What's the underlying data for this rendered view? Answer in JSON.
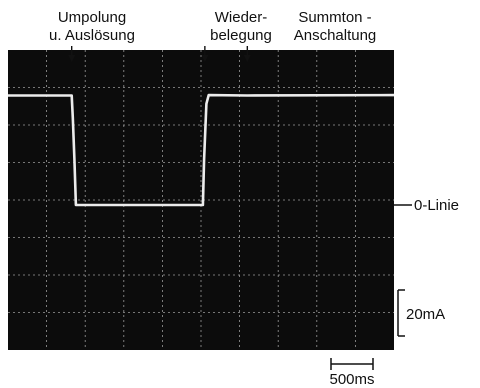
{
  "chart_data": {
    "type": "line",
    "title": "",
    "xlabel": "",
    "ylabel": "",
    "colors": {
      "background": "#ffffff",
      "screen": "#0c0c0c",
      "trace": "#ececec",
      "grid": "#9a9a9a",
      "text": "#111111"
    },
    "grid": true,
    "x_divisions": 10,
    "y_divisions": 8,
    "x_scale_label": "500ms",
    "y_scale_label": "20mA",
    "zero_line_label": "0-Linie",
    "events": [
      {
        "name": "umpolung",
        "lines": [
          "Umpolung",
          "u. Auslösung"
        ],
        "x": 1.65
      },
      {
        "name": "wiederbelegung",
        "lines": [
          "Wieder-",
          "belegung"
        ],
        "x": 5.1
      },
      {
        "name": "summton",
        "lines": [
          "Summton -",
          "Anschaltung"
        ],
        "x": 6.2
      }
    ],
    "series": [
      {
        "points": [
          [
            0,
            47.6
          ],
          [
            1.65,
            47.6
          ],
          [
            1.68,
            38
          ],
          [
            1.72,
            20
          ],
          [
            1.76,
            0
          ],
          [
            3.5,
            0
          ],
          [
            5.05,
            0
          ],
          [
            5.08,
            20
          ],
          [
            5.14,
            44
          ],
          [
            5.2,
            47.8
          ],
          [
            6.2,
            47.6
          ],
          [
            10,
            47.8
          ]
        ]
      }
    ]
  }
}
